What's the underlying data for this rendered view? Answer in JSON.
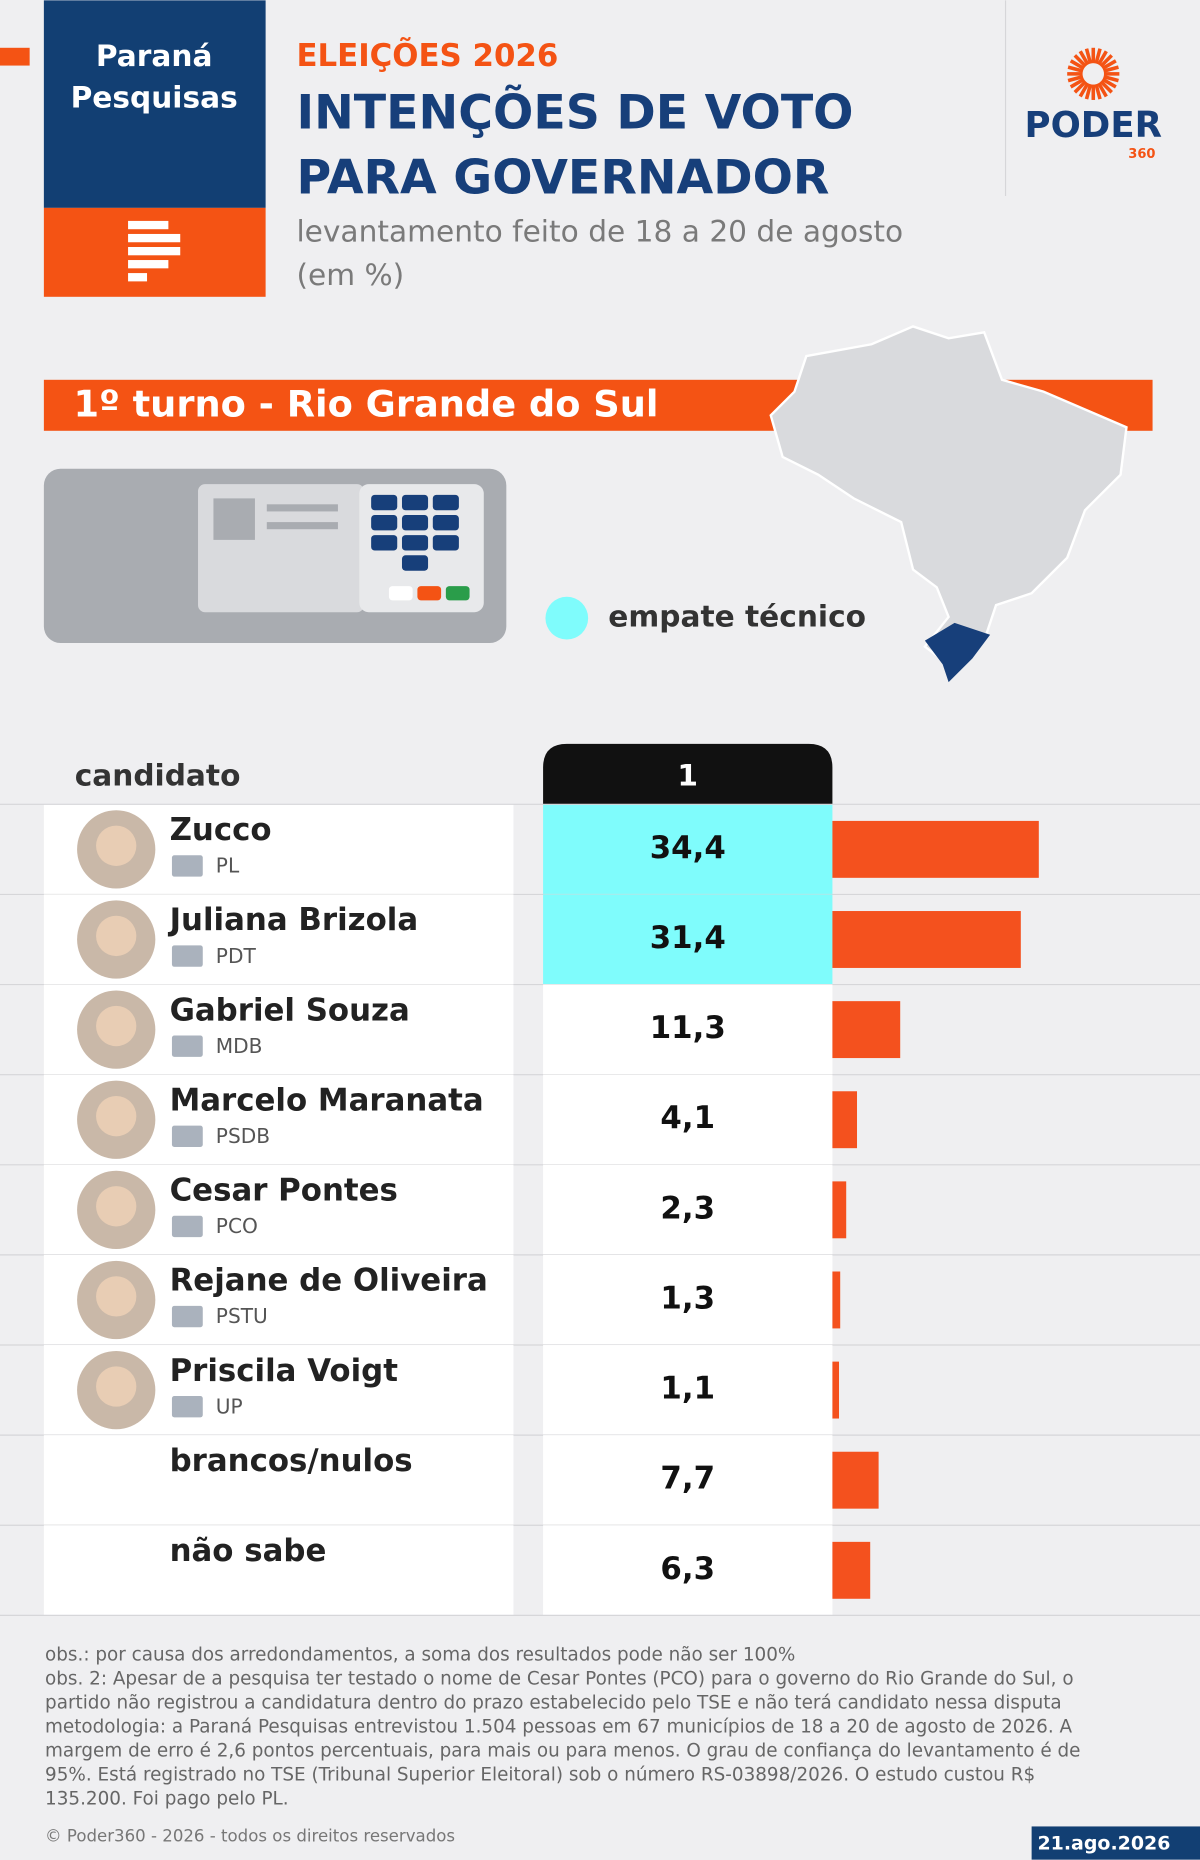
{
  "header": {
    "source_lines": [
      "Paraná",
      "Pesquisas"
    ],
    "kicker": "ELEIÇÕES 2026",
    "title_lines": [
      "INTENÇÕES DE VOTO",
      "PARA GOVERNADOR"
    ],
    "subtitle_lines": [
      "levantamento feito de 18 a 20 de agosto",
      "(em %)"
    ],
    "logo": "PODER",
    "logo_sub": "360"
  },
  "chart_data": {
    "type": "bar",
    "section": "1º turno - Rio Grande do Sul",
    "legend": {
      "label": "empate técnico",
      "color": "#7ffcfc"
    },
    "column_label": "candidato",
    "round_label": "1",
    "categories": [
      "Zucco",
      "Juliana Brizola",
      "Gabriel Souza",
      "Marcelo Maranata",
      "Cesar Pontes",
      "Rejane de Oliveira",
      "Priscila Voigt",
      "brancos/nulos",
      "não sabe"
    ],
    "parties": [
      "PL",
      "PDT",
      "MDB",
      "PSDB",
      "PCO",
      "PSTU",
      "UP",
      null,
      null
    ],
    "values": [
      34.4,
      31.4,
      11.3,
      4.1,
      2.3,
      1.3,
      1.1,
      7.7,
      6.3
    ],
    "value_labels": [
      "34,4",
      "31,4",
      "11,3",
      "4,1",
      "2,3",
      "1,3",
      "1,1",
      "7,7",
      "6,3"
    ],
    "tie": [
      true,
      true,
      false,
      false,
      false,
      false,
      false,
      false,
      false
    ],
    "color": "#f4511e"
  },
  "notes": [
    "obs.: por causa dos arredondamentos, a soma dos resultados pode não ser 100%",
    "obs. 2: Apesar de a pesquisa ter testado o nome de Cesar Pontes (PCO) para o governo do Rio Grande do Sul, o",
    "partido não registrou a candidatura dentro do prazo estabelecido pelo TSE e não terá candidato nessa disputa",
    "metodologia: a Paraná Pesquisas entrevistou 1.504 pessoas em 67 municípios de 18 a 20 de agosto de 2026. A",
    "margem de erro é 2,6 pontos percentuais, para mais ou para menos. O grau de confiança do levantamento é de",
    "95%. Está registrado no TSE (Tribunal Superior Eleitoral) sob o número RS-03898/2026. O estudo custou R$",
    "135.200. Foi pago pelo PL."
  ],
  "footer": {
    "copyright": "© Poder360 - 2026 - todos os direitos reservados",
    "date": "21.ago.2026"
  }
}
